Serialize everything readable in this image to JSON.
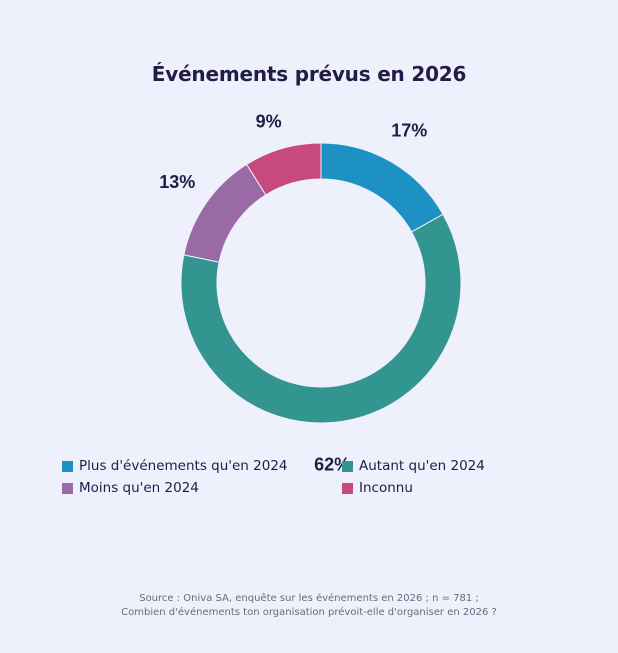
{
  "chart_data": {
    "type": "pie",
    "variant": "donut",
    "title": "Événements prévus en 2026",
    "categories": [
      "Plus d'événements qu'en 2024",
      "Autant qu'en 2024",
      "Moins qu'en 2024",
      "Inconnu"
    ],
    "values": [
      17,
      62,
      13,
      9
    ],
    "labels": [
      "17%",
      "62%",
      "13%",
      "9%"
    ],
    "colors": [
      "#1E91C4",
      "#339590",
      "#9A6AA4",
      "#C8497F"
    ],
    "legend_position": "bottom",
    "source_lines": [
      "Source : Oniva SA, enquête sur les événements en 2026 ; n = 781 ;",
      "Combien d'événements ton organisation prévoit-elle d'organiser en 2026 ?"
    ]
  }
}
